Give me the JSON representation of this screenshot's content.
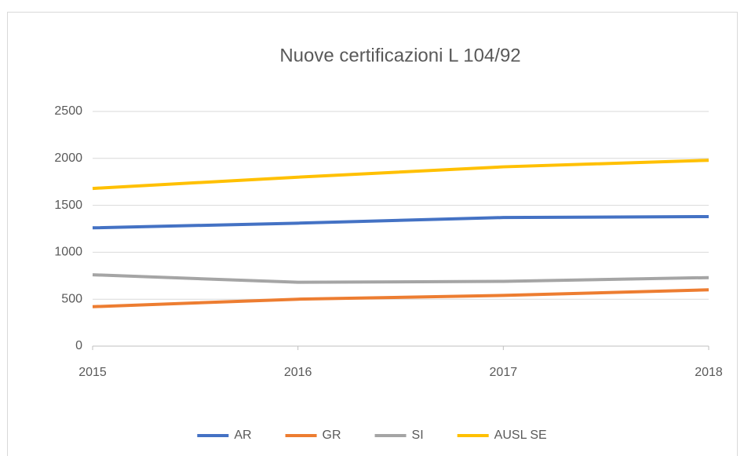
{
  "chart_data": {
    "type": "line",
    "title": "Nuove certificazioni L 104/92",
    "x": [
      2015,
      2016,
      2017,
      2018
    ],
    "xlim": [
      2015,
      2018
    ],
    "xticks": [
      2015,
      2016,
      2017,
      2018
    ],
    "ylim": [
      0,
      2500
    ],
    "yticks": [
      0,
      500,
      1000,
      1500,
      2000,
      2500
    ],
    "grid": true,
    "legend": "bottom",
    "series": [
      {
        "name": "AR",
        "color": "#4472c4",
        "values": [
          1260,
          1310,
          1370,
          1380
        ]
      },
      {
        "name": "GR",
        "color": "#ed7d31",
        "values": [
          420,
          500,
          540,
          600
        ]
      },
      {
        "name": "SI",
        "color": "#a5a5a5",
        "values": [
          760,
          680,
          690,
          730
        ]
      },
      {
        "name": "AUSL SE",
        "color": "#ffc000",
        "values": [
          1680,
          1800,
          1910,
          1980
        ]
      }
    ]
  }
}
